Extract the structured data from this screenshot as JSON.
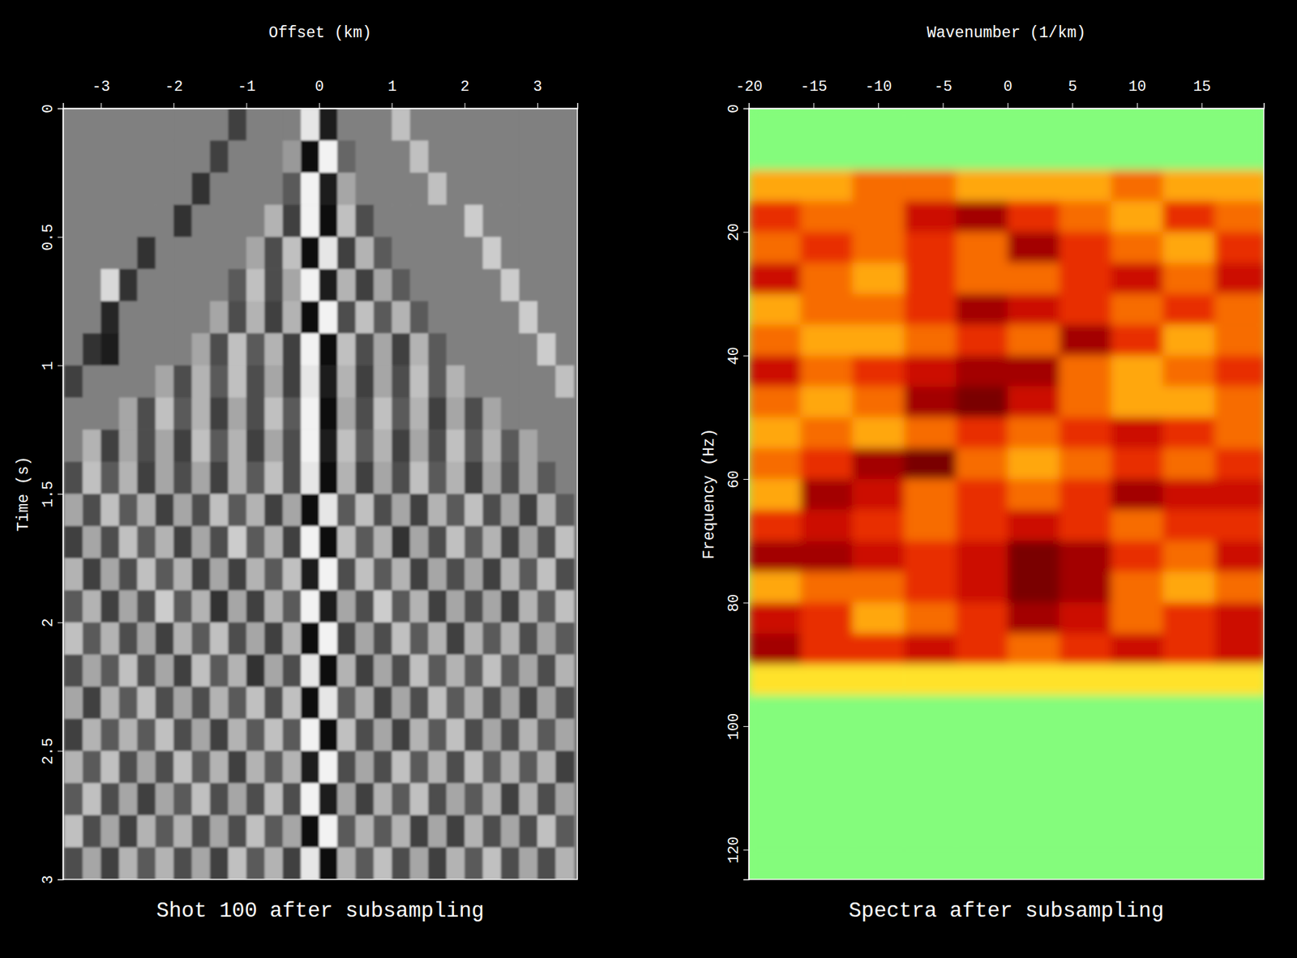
{
  "chart_data": [
    {
      "type": "heatmap",
      "title": "Shot 100 after subsampling",
      "x_label": "Offset (km)",
      "y_label": "Time (s)",
      "color": "gray",
      "zlim": [
        -1,
        1
      ],
      "xlim": [
        -3.52,
        3.55
      ],
      "ylim": [
        0,
        3
      ],
      "xticks": [
        -3,
        -2,
        -1,
        0,
        1,
        2,
        3
      ],
      "yticks": [
        0,
        0.5,
        1,
        1.5,
        2,
        2.5,
        3
      ],
      "x_edges": [
        -3.5,
        -3.25,
        -3,
        -2.75,
        -2.5,
        -2.25,
        -2,
        -1.75,
        -1.5,
        -1.25,
        -1,
        -0.75,
        -0.5,
        -0.25,
        0,
        0.25,
        0.5,
        0.75,
        1,
        1.25,
        1.5,
        1.75,
        2,
        2.25,
        2.5,
        2.75,
        3,
        3.25,
        3.5
      ],
      "y_edges": [
        0,
        0.125,
        0.25,
        0.375,
        0.5,
        0.625,
        0.75,
        0.875,
        1,
        1.125,
        1.25,
        1.375,
        1.5,
        1.625,
        1.75,
        1.875,
        2,
        2.125,
        2.25,
        2.375,
        2.5,
        2.625,
        2.75,
        2.875,
        3
      ],
      "cells": [
        [
          0,
          0,
          0,
          0,
          0,
          0,
          0,
          0,
          0,
          -0.5,
          0,
          0,
          0,
          0.8,
          -0.8,
          0,
          0,
          0,
          0.5,
          0,
          0,
          0,
          0,
          0,
          0,
          0,
          0,
          0
        ],
        [
          0,
          0,
          0,
          0,
          0,
          0,
          0,
          0,
          -0.5,
          0,
          0,
          0,
          0.2,
          -0.9,
          0.9,
          -0.2,
          0,
          0,
          0,
          0.5,
          0,
          0,
          0,
          0,
          0,
          0,
          0,
          0
        ],
        [
          0,
          0,
          0,
          0,
          0,
          0,
          0,
          -0.6,
          0,
          0,
          0,
          0,
          -0.3,
          0.9,
          -0.8,
          0.3,
          0,
          0,
          0,
          0,
          0.5,
          0,
          0,
          0,
          0,
          0,
          0,
          0
        ],
        [
          0,
          0,
          0,
          0,
          0,
          0,
          -0.6,
          0,
          0,
          0,
          0,
          0.4,
          -0.5,
          0.9,
          -0.9,
          0.5,
          -0.4,
          0,
          0,
          0,
          0,
          0,
          0.6,
          0,
          0,
          0,
          0,
          0
        ],
        [
          0,
          0,
          0,
          0,
          -0.6,
          0,
          0,
          0,
          0,
          0,
          0.3,
          -0.4,
          0.5,
          -0.9,
          0.8,
          -0.5,
          0.4,
          -0.3,
          0,
          0,
          0,
          0,
          0,
          0.6,
          0,
          0,
          0,
          0
        ],
        [
          0,
          0,
          0.7,
          -0.6,
          0,
          0,
          0,
          0,
          0,
          -0.3,
          0.5,
          -0.4,
          0.3,
          0.9,
          -0.8,
          0.4,
          -0.5,
          0.3,
          -0.3,
          0,
          0,
          0,
          0,
          0,
          0.6,
          0,
          0,
          0
        ],
        [
          0,
          0,
          -0.7,
          0,
          0,
          0,
          0,
          0,
          0.3,
          -0.4,
          0.4,
          -0.5,
          0.4,
          -0.9,
          0.9,
          -0.4,
          0.5,
          -0.3,
          0.4,
          -0.3,
          0,
          0,
          0,
          0,
          0,
          0.6,
          0,
          0
        ],
        [
          0,
          -0.6,
          -0.8,
          0,
          0,
          0,
          0,
          0.3,
          -0.4,
          0.5,
          -0.3,
          0.4,
          -0.5,
          0.9,
          -0.9,
          0.5,
          -0.4,
          0.3,
          -0.5,
          0.4,
          -0.3,
          0,
          0,
          0,
          0,
          0,
          0.6,
          0
        ],
        [
          -0.5,
          0,
          0,
          0,
          0,
          0.3,
          -0.4,
          0.4,
          -0.3,
          0.5,
          -0.4,
          0.3,
          -0.5,
          0.8,
          -0.8,
          0.4,
          -0.5,
          0.3,
          -0.4,
          0.5,
          -0.3,
          0.4,
          0,
          0,
          0,
          0,
          0,
          0.5
        ],
        [
          0,
          0,
          0,
          0.3,
          -0.4,
          0.5,
          -0.3,
          0.4,
          -0.5,
          0.3,
          -0.4,
          0.5,
          -0.3,
          0.9,
          -0.9,
          0.3,
          -0.4,
          0.5,
          -0.3,
          0.4,
          -0.5,
          0.3,
          -0.4,
          0.3,
          0,
          0,
          0,
          0
        ],
        [
          0,
          0.4,
          -0.5,
          0.3,
          -0.4,
          0.3,
          -0.5,
          0.5,
          -0.3,
          0.4,
          -0.5,
          0.3,
          -0.4,
          0.9,
          -0.8,
          0.5,
          -0.3,
          0.4,
          -0.5,
          0.3,
          -0.4,
          0.5,
          -0.3,
          0.4,
          -0.3,
          0.3,
          0,
          0
        ],
        [
          -0.4,
          0.5,
          -0.3,
          0.4,
          -0.5,
          0.3,
          -0.4,
          0.3,
          -0.5,
          0.4,
          -0.3,
          0.5,
          -0.4,
          0.8,
          -0.9,
          0.4,
          -0.5,
          0.3,
          -0.4,
          0.5,
          -0.3,
          0.4,
          -0.5,
          0.3,
          -0.4,
          0.3,
          -0.3,
          0
        ],
        [
          0.3,
          -0.4,
          0.5,
          -0.3,
          0.4,
          -0.5,
          0.3,
          -0.4,
          0.5,
          -0.3,
          0.4,
          -0.5,
          0.3,
          -0.9,
          0.8,
          -0.3,
          0.5,
          -0.4,
          0.3,
          -0.5,
          0.4,
          -0.3,
          0.5,
          -0.4,
          0.3,
          -0.5,
          0.4,
          -0.3
        ],
        [
          -0.5,
          0.3,
          -0.4,
          0.5,
          -0.3,
          0.4,
          -0.5,
          0.3,
          -0.4,
          0.6,
          -0.3,
          0.4,
          -0.5,
          0.9,
          -0.9,
          0.5,
          -0.3,
          0.4,
          -0.6,
          0.3,
          -0.4,
          0.5,
          -0.3,
          0.4,
          -0.5,
          0.3,
          -0.4,
          0.5
        ],
        [
          0.4,
          -0.5,
          0.3,
          -0.4,
          0.5,
          -0.3,
          0.4,
          -0.5,
          0.3,
          -0.5,
          0.4,
          -0.3,
          0.5,
          -0.8,
          0.9,
          -0.4,
          0.5,
          -0.3,
          0.4,
          -0.5,
          0.3,
          -0.4,
          0.3,
          -0.5,
          0.4,
          -0.3,
          0.5,
          -0.4
        ],
        [
          -0.3,
          0.4,
          -0.5,
          0.3,
          -0.4,
          0.6,
          -0.3,
          0.4,
          -0.6,
          0.3,
          -0.5,
          0.4,
          -0.3,
          0.9,
          -0.8,
          0.3,
          -0.4,
          0.6,
          -0.3,
          0.4,
          -0.5,
          0.3,
          -0.4,
          0.3,
          -0.5,
          0.4,
          -0.3,
          0.5
        ],
        [
          0.5,
          -0.3,
          0.4,
          -0.4,
          0.3,
          -0.5,
          0.4,
          -0.3,
          0.5,
          -0.4,
          0.3,
          -0.5,
          0.4,
          -0.9,
          0.9,
          -0.5,
          0.3,
          -0.4,
          0.5,
          -0.3,
          0.4,
          -0.5,
          0.4,
          -0.3,
          0.4,
          -0.4,
          0.3,
          -0.3
        ],
        [
          -0.4,
          0.3,
          -0.3,
          0.5,
          -0.4,
          0.3,
          -0.5,
          0.5,
          -0.3,
          0.4,
          -0.6,
          0.3,
          -0.4,
          0.8,
          -0.9,
          0.4,
          -0.5,
          0.3,
          -0.4,
          0.5,
          -0.3,
          0.4,
          -0.3,
          0.5,
          -0.3,
          0.3,
          -0.4,
          0.4
        ],
        [
          0.3,
          -0.5,
          0.4,
          -0.3,
          0.5,
          -0.4,
          0.3,
          -0.4,
          0.4,
          -0.3,
          0.5,
          -0.4,
          0.5,
          -0.9,
          0.8,
          -0.3,
          0.4,
          -0.5,
          0.3,
          -0.4,
          0.5,
          -0.3,
          0.4,
          -0.4,
          0.3,
          -0.5,
          0.3,
          -0.4
        ],
        [
          -0.5,
          0.4,
          -0.3,
          0.4,
          -0.3,
          0.5,
          -0.4,
          0.3,
          -0.5,
          0.4,
          -0.3,
          0.5,
          -0.3,
          0.9,
          -0.9,
          0.5,
          -0.4,
          0.3,
          -0.5,
          0.4,
          -0.3,
          0.5,
          -0.4,
          0.3,
          -0.4,
          0.4,
          -0.3,
          0.3
        ],
        [
          0.4,
          -0.3,
          0.5,
          -0.4,
          0.3,
          -0.4,
          0.5,
          -0.3,
          0.4,
          -0.5,
          0.4,
          -0.3,
          0.4,
          -0.8,
          0.9,
          -0.4,
          0.3,
          -0.4,
          0.5,
          -0.3,
          0.4,
          -0.4,
          0.5,
          -0.3,
          0.4,
          -0.3,
          0.4,
          -0.5
        ],
        [
          -0.3,
          0.5,
          -0.4,
          0.3,
          -0.5,
          0.3,
          -0.3,
          0.5,
          -0.4,
          0.3,
          -0.4,
          0.5,
          -0.4,
          0.9,
          -0.8,
          0.3,
          -0.5,
          0.4,
          -0.3,
          0.5,
          -0.4,
          0.3,
          -0.3,
          0.4,
          -0.5,
          0.4,
          -0.4,
          0.3
        ],
        [
          0.5,
          -0.4,
          0.3,
          -0.5,
          0.4,
          -0.3,
          0.4,
          -0.4,
          0.3,
          -0.4,
          0.5,
          -0.3,
          0.3,
          -0.9,
          0.9,
          -0.3,
          0.4,
          -0.3,
          0.4,
          -0.5,
          0.3,
          -0.5,
          0.4,
          -0.4,
          0.3,
          -0.4,
          0.5,
          -0.3
        ],
        [
          -0.4,
          0.3,
          -0.5,
          0.4,
          -0.3,
          0.4,
          -0.4,
          0.3,
          -0.5,
          0.5,
          -0.3,
          0.4,
          -0.5,
          0.8,
          -0.9,
          0.4,
          -0.3,
          0.5,
          -0.4,
          0.3,
          -0.5,
          0.4,
          -0.3,
          0.5,
          -0.4,
          0.3,
          -0.4,
          0.4
        ]
      ]
    },
    {
      "type": "heatmap",
      "title": "Spectra after subsampling",
      "x_label": "Wavenumber (1/km)",
      "y_label": "Frequency (Hz)",
      "color": "green-red",
      "zlim": [
        0,
        1
      ],
      "xlim": [
        -20,
        19.8
      ],
      "ylim": [
        0,
        124.8
      ],
      "xticks": [
        -20,
        -15,
        -10,
        -5,
        0,
        5,
        10,
        15
      ],
      "yticks": [
        0,
        20,
        40,
        60,
        80,
        100,
        120
      ],
      "x_edges": [
        -20,
        -16,
        -12,
        -8,
        -4,
        0,
        4,
        8,
        12,
        16,
        20
      ],
      "y_edges": [
        0,
        5,
        10,
        15,
        20,
        25,
        30,
        35,
        40,
        45,
        50,
        55,
        60,
        65,
        70,
        75,
        80,
        85,
        90,
        95,
        100,
        105,
        110,
        115,
        120,
        125
      ],
      "cells": [
        [
          0,
          0,
          0,
          0,
          0,
          0,
          0,
          0,
          0,
          0
        ],
        [
          0,
          0,
          0,
          0,
          0,
          0,
          0,
          0,
          0,
          0
        ],
        [
          0.5,
          0.5,
          0.6,
          0.6,
          0.5,
          0.5,
          0.5,
          0.6,
          0.5,
          0.5
        ],
        [
          0.7,
          0.6,
          0.6,
          0.8,
          0.9,
          0.7,
          0.6,
          0.5,
          0.7,
          0.6
        ],
        [
          0.6,
          0.7,
          0.6,
          0.7,
          0.6,
          0.9,
          0.7,
          0.6,
          0.5,
          0.7
        ],
        [
          0.8,
          0.6,
          0.5,
          0.7,
          0.6,
          0.6,
          0.7,
          0.8,
          0.6,
          0.8
        ],
        [
          0.5,
          0.6,
          0.6,
          0.7,
          0.9,
          0.8,
          0.7,
          0.6,
          0.7,
          0.6
        ],
        [
          0.6,
          0.5,
          0.5,
          0.6,
          0.7,
          0.6,
          0.9,
          0.7,
          0.5,
          0.6
        ],
        [
          0.8,
          0.6,
          0.7,
          0.8,
          0.9,
          0.9,
          0.6,
          0.5,
          0.6,
          0.7
        ],
        [
          0.6,
          0.5,
          0.6,
          0.9,
          1.0,
          0.8,
          0.6,
          0.5,
          0.5,
          0.6
        ],
        [
          0.5,
          0.6,
          0.5,
          0.6,
          0.7,
          0.6,
          0.7,
          0.8,
          0.7,
          0.6
        ],
        [
          0.6,
          0.7,
          0.9,
          1.0,
          0.6,
          0.5,
          0.6,
          0.7,
          0.6,
          0.7
        ],
        [
          0.5,
          0.9,
          0.8,
          0.6,
          0.7,
          0.6,
          0.7,
          0.9,
          0.8,
          0.8
        ],
        [
          0.7,
          0.8,
          0.7,
          0.6,
          0.7,
          0.8,
          0.7,
          0.6,
          0.7,
          0.7
        ],
        [
          0.9,
          0.9,
          0.8,
          0.7,
          0.8,
          1.0,
          0.9,
          0.7,
          0.6,
          0.8
        ],
        [
          0.5,
          0.6,
          0.6,
          0.7,
          0.8,
          1.0,
          0.9,
          0.6,
          0.5,
          0.6
        ],
        [
          0.8,
          0.7,
          0.5,
          0.6,
          0.7,
          0.9,
          0.8,
          0.6,
          0.7,
          0.8
        ],
        [
          0.9,
          0.7,
          0.7,
          0.8,
          0.7,
          0.6,
          0.7,
          0.8,
          0.7,
          0.8
        ],
        [
          0.4,
          0.4,
          0.4,
          0.4,
          0.4,
          0.4,
          0.4,
          0.4,
          0.4,
          0.4
        ],
        [
          0,
          0,
          0,
          0,
          0,
          0,
          0,
          0,
          0,
          0
        ],
        [
          0,
          0,
          0,
          0,
          0,
          0,
          0,
          0,
          0,
          0
        ],
        [
          0,
          0,
          0,
          0,
          0,
          0,
          0,
          0,
          0,
          0
        ],
        [
          0,
          0,
          0,
          0,
          0,
          0,
          0,
          0,
          0,
          0
        ],
        [
          0,
          0,
          0,
          0,
          0,
          0,
          0,
          0,
          0,
          0
        ],
        [
          0,
          0,
          0,
          0,
          0,
          0,
          0,
          0,
          0,
          0
        ]
      ]
    }
  ]
}
